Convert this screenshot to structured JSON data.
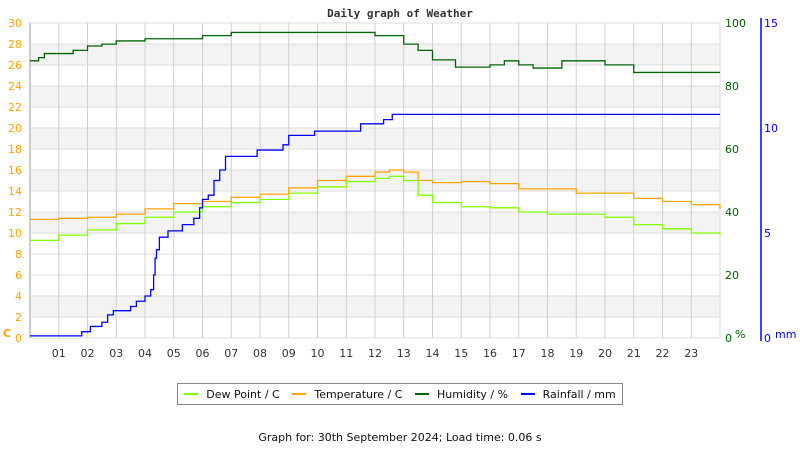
{
  "chart_data": {
    "type": "line",
    "title": "Daily graph of Weather",
    "x_ticks": [
      "01",
      "02",
      "03",
      "04",
      "05",
      "06",
      "07",
      "08",
      "09",
      "10",
      "11",
      "12",
      "13",
      "14",
      "15",
      "16",
      "17",
      "18",
      "19",
      "20",
      "21",
      "22",
      "23"
    ],
    "xlim": [
      0,
      24
    ],
    "left_axis": {
      "unit": "C",
      "ylim": [
        0,
        30
      ],
      "ticks": [
        0,
        2,
        4,
        6,
        8,
        10,
        12,
        14,
        16,
        18,
        20,
        22,
        24,
        26,
        28,
        30
      ],
      "color": "#ffa500"
    },
    "right_axis_humidity": {
      "unit": "%",
      "ylim": [
        0,
        100
      ],
      "ticks": [
        0,
        20,
        40,
        60,
        80,
        100
      ],
      "color": "#006400"
    },
    "right_axis_rain": {
      "unit": "mm",
      "ylim": [
        0,
        15
      ],
      "ticks": [
        0,
        5,
        10,
        15
      ],
      "color": "#0000ff"
    },
    "grid": true,
    "bands": [
      [
        2,
        4
      ],
      [
        10,
        12
      ],
      [
        14,
        16
      ],
      [
        18,
        20
      ],
      [
        22,
        24
      ],
      [
        26,
        28
      ]
    ],
    "legend_placement": "bottom",
    "series": [
      {
        "name": "Dew Point / C",
        "axis": "left",
        "color": "#80ff00",
        "x": [
          0,
          1,
          2,
          3,
          4,
          5,
          6,
          7,
          8,
          9,
          10,
          11,
          12,
          12.5,
          13,
          13.5,
          14,
          15,
          16,
          17,
          18,
          19,
          20,
          21,
          22,
          23,
          24
        ],
        "values": [
          9.3,
          9.8,
          10.3,
          10.9,
          11.5,
          12.0,
          12.5,
          12.9,
          13.2,
          13.8,
          14.4,
          14.9,
          15.2,
          15.4,
          15.0,
          13.6,
          12.9,
          12.5,
          12.4,
          12.0,
          11.8,
          11.8,
          11.5,
          10.8,
          10.4,
          10.0,
          9.8
        ]
      },
      {
        "name": "Temperature / C",
        "axis": "left",
        "color": "#ffa500",
        "x": [
          0,
          1,
          2,
          3,
          4,
          5,
          6,
          7,
          8,
          9,
          10,
          11,
          12,
          12.5,
          13,
          13.5,
          14,
          15,
          16,
          17,
          18,
          19,
          20,
          21,
          22,
          23,
          24
        ],
        "values": [
          11.3,
          11.4,
          11.5,
          11.8,
          12.3,
          12.8,
          13.0,
          13.4,
          13.7,
          14.3,
          15.0,
          15.4,
          15.8,
          16.0,
          15.8,
          15.0,
          14.8,
          14.9,
          14.7,
          14.2,
          14.2,
          13.8,
          13.8,
          13.3,
          13.0,
          12.7,
          12.3
        ]
      },
      {
        "name": "Humidity / %",
        "axis": "humidity",
        "color": "#006400",
        "x": [
          0,
          0.3,
          0.5,
          1.5,
          2,
          2.5,
          3,
          4,
          4.5,
          5,
          6,
          7,
          8,
          12,
          13,
          13.5,
          14,
          14.8,
          16,
          16.5,
          17,
          17.5,
          18.5,
          19,
          20,
          21,
          24
        ],
        "values": [
          88,
          89,
          90.3,
          91.3,
          92.7,
          93.3,
          94.3,
          95,
          95,
          95,
          96,
          97,
          97,
          96,
          93.3,
          91.3,
          88.3,
          86,
          86.7,
          88,
          86.7,
          85.7,
          88,
          88,
          86.7,
          84.3,
          84.3
        ]
      },
      {
        "name": "Rainfall / mm",
        "axis": "rain",
        "color": "#0000ff",
        "x": [
          0,
          1.8,
          2.1,
          2.5,
          2.7,
          2.9,
          3.5,
          3.7,
          4,
          4.2,
          4.3,
          4.35,
          4.4,
          4.5,
          4.8,
          5.3,
          5.7,
          5.9,
          6,
          6.2,
          6.4,
          6.6,
          6.8,
          7.9,
          8.8,
          9,
          9.9,
          11.5,
          12.3,
          12.6,
          24
        ],
        "values": [
          0.1,
          0.3,
          0.55,
          0.75,
          1.1,
          1.3,
          1.5,
          1.75,
          2.0,
          2.3,
          3.0,
          3.8,
          4.2,
          4.8,
          5.1,
          5.4,
          5.7,
          6.2,
          6.6,
          6.8,
          7.5,
          8.0,
          8.65,
          8.95,
          9.2,
          9.65,
          9.85,
          10.2,
          10.4,
          10.65,
          10.65
        ]
      }
    ]
  },
  "footer": "Graph for: 30th September 2024; Load time: 0.06 s"
}
